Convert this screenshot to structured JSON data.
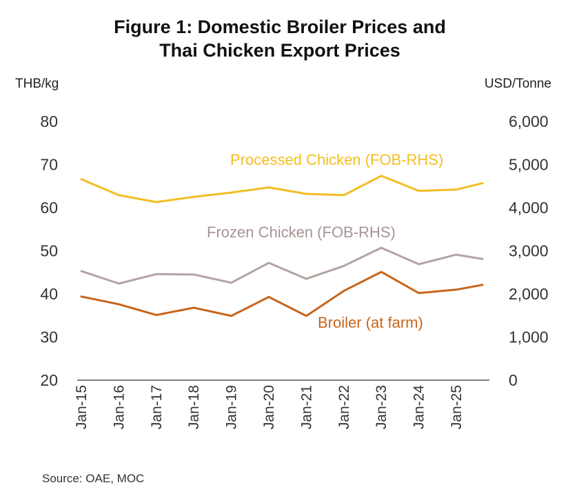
{
  "chart_data": {
    "type": "line",
    "title": "Figure 1: Domestic Broiler Prices and Thai Chicken Export Prices",
    "title_lines": [
      "Figure 1: Domestic Broiler Prices and",
      "Thai Chicken Export Prices"
    ],
    "ylabel_left": "THB/kg",
    "ylabel_right": "USD/Tonne",
    "ylim_left": [
      20,
      80
    ],
    "ylim_right": [
      0,
      6000
    ],
    "yticks_left": [
      "20",
      "30",
      "40",
      "50",
      "60",
      "70",
      "80"
    ],
    "yticks_right": [
      "0",
      "1,000",
      "2,000",
      "3,000",
      "4,000",
      "5,000",
      "6,000"
    ],
    "categories": [
      "Jan-15",
      "Jan-16",
      "Jan-17",
      "Jan-18",
      "Jan-19",
      "Jan-20",
      "Jan-21",
      "Jan-22",
      "Jan-23",
      "Jan-24",
      "Jan-25"
    ],
    "x": [
      0,
      1,
      2,
      3,
      4,
      5,
      6,
      7,
      8,
      9,
      10,
      10.7
    ],
    "series": [
      {
        "name": "Processed Chicken (FOB-RHS)",
        "axis": "right",
        "color": "#F2BE22",
        "values": [
          4660,
          4290,
          4130,
          4250,
          4350,
          4470,
          4320,
          4290,
          4740,
          4390,
          4420,
          4570
        ]
      },
      {
        "name": "Frozen Chicken (FOB-RHS)",
        "axis": "right",
        "color": "#B3A3A1",
        "values": [
          2530,
          2240,
          2460,
          2450,
          2260,
          2720,
          2350,
          2650,
          3070,
          2690,
          2910,
          2810
        ]
      },
      {
        "name": "Broiler (at farm)",
        "axis": "left",
        "color": "#C8651B",
        "values": [
          39.4,
          37.6,
          35.1,
          36.8,
          34.9,
          39.3,
          34.9,
          40.7,
          45.1,
          40.2,
          41.0,
          42.1
        ]
      }
    ],
    "source": "Source: OAE, MOC"
  }
}
